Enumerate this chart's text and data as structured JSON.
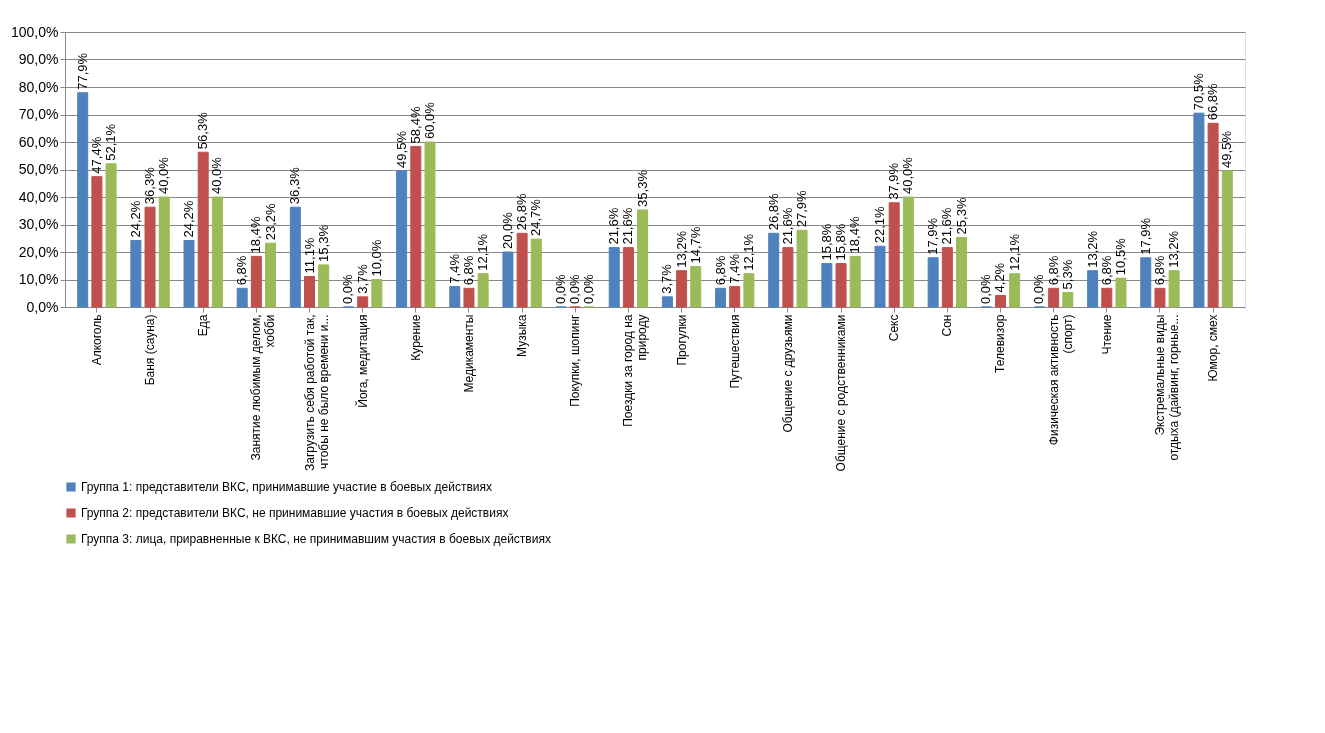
{
  "chart_data": {
    "type": "bar",
    "categories": [
      "Алкоголь",
      "Баня  (сауна)",
      "Еда",
      "Занятие любимым делом,\nхобби",
      "Загрузить себя работой так,\nчтобы не было времени и...",
      "Йога, медитация",
      "Курение",
      "Медикаменты",
      "Музыка",
      "Покупки, шопинг",
      "Поездки за город на\nприроду",
      "Прогулки",
      "Путешествия",
      "Общение с друзьями",
      "Общение с родственниками",
      "Секс",
      "Сон",
      "Телевизор",
      "Физическая  активность\n(спорт)",
      "Чтение",
      "Экстремальные виды\nотдыха (дайвинг, горные...",
      "Юмор, смех"
    ],
    "series": [
      {
        "name": "Группа 1: представители ВКС, принимавшие  участие в боевых действиях",
        "color": "#4f81bd",
        "values": [
          77.9,
          24.2,
          24.2,
          6.8,
          36.3,
          0.0,
          49.5,
          7.4,
          20.0,
          0.0,
          21.6,
          3.7,
          6.8,
          26.8,
          15.8,
          22.1,
          17.9,
          0.0,
          0.0,
          13.2,
          17.9,
          70.5
        ],
        "value_labels": [
          "77,9%",
          "24,2%",
          "24,2%",
          "6,8%",
          "36,3%",
          "0,0%",
          "49,5%",
          "7,4%",
          "20,0%",
          "0,0%",
          "21,6%",
          "3,7%",
          "6,8%",
          "26,8%",
          "15,8%",
          "22,1%",
          "17,9%",
          "0,0%",
          "0,0%",
          "13,2%",
          "17,9%",
          "70,5%"
        ]
      },
      {
        "name": "Группа 2: представители ВКС, не принимавшие участия в боевых действиях",
        "color": "#c0504d",
        "values": [
          47.4,
          36.3,
          56.3,
          18.4,
          11.1,
          3.7,
          58.4,
          6.8,
          26.8,
          0.0,
          21.6,
          13.2,
          7.4,
          21.6,
          15.8,
          37.9,
          21.6,
          4.2,
          6.8,
          6.8,
          6.8,
          66.8
        ],
        "value_labels": [
          "47,4%",
          "36,3%",
          "56,3%",
          "18,4%",
          "11,1%",
          "3,7%",
          "58,4%",
          "6,8%",
          "26,8%",
          "0,0%",
          "21,6%",
          "13,2%",
          "7,4%",
          "21,6%",
          "15,8%",
          "37,9%",
          "21,6%",
          "4,2%",
          "6,8%",
          "6,8%",
          "6,8%",
          "66,8%"
        ]
      },
      {
        "name": "Группа 3: лица, приравненные к ВКС, не принимавшим участия в боевых действиях",
        "color": "#9bbb59",
        "values": [
          52.1,
          40.0,
          40.0,
          23.2,
          15.3,
          10.0,
          60.0,
          12.1,
          24.7,
          0.0,
          35.3,
          14.7,
          12.1,
          27.9,
          18.4,
          40.0,
          25.3,
          12.1,
          5.3,
          10.5,
          13.2,
          49.5
        ],
        "value_labels": [
          "52,1%",
          "40,0%",
          "40,0%",
          "23,2%",
          "15,3%",
          "10,0%",
          "60,0%",
          "12,1%",
          "24,7%",
          "0,0%",
          "35,3%",
          "14,7%",
          "12,1%",
          "27,9%",
          "18,4%",
          "40,0%",
          "25,3%",
          "12,1%",
          "5,3%",
          "10,5%",
          "13,2%",
          "49,5%"
        ]
      }
    ],
    "ylim": [
      0,
      100
    ],
    "yticks": [
      {
        "value": 0,
        "label": "0,0%"
      },
      {
        "value": 10,
        "label": "10,0%"
      },
      {
        "value": 20,
        "label": "20,0%"
      },
      {
        "value": 30,
        "label": "30,0%"
      },
      {
        "value": 40,
        "label": "40,0%"
      },
      {
        "value": 50,
        "label": "50,0%"
      },
      {
        "value": 60,
        "label": "60,0%"
      },
      {
        "value": 70,
        "label": "70,0%"
      },
      {
        "value": 80,
        "label": "80,0%"
      },
      {
        "value": 90,
        "label": "90,0%"
      },
      {
        "value": 100,
        "label": "100,0%"
      }
    ],
    "grid": "y",
    "legend": "bottom"
  }
}
